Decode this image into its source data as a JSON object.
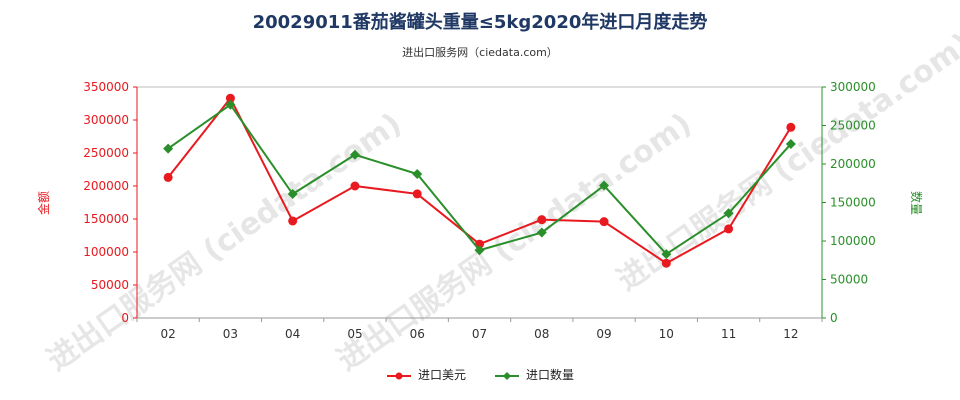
{
  "chart_data": {
    "type": "line",
    "title": "20029011番茄酱罐头重量≤5kg2020年进口月度走势",
    "subtitle": "进出口服务网（ciedata.com）",
    "watermark": "进出口服务网 (ciedata.com)",
    "categories": [
      "02",
      "03",
      "04",
      "05",
      "06",
      "07",
      "08",
      "09",
      "10",
      "11",
      "12"
    ],
    "ylabel_left": "金额",
    "ylabel_right": "数量",
    "ylim_left": [
      0,
      350000
    ],
    "ylim_right": [
      0,
      300000
    ],
    "yticks_left": [
      "0",
      "50000",
      "100000",
      "150000",
      "200000",
      "250000",
      "300000",
      "350000"
    ],
    "yticks_right": [
      "0",
      "50000",
      "100000",
      "150000",
      "200000",
      "250000",
      "300000"
    ],
    "series": [
      {
        "name": "进口美元",
        "axis": "left",
        "color": "#e8191f",
        "values": [
          213000,
          333000,
          147000,
          200000,
          188000,
          112000,
          149000,
          146000,
          83000,
          135000,
          289000
        ]
      },
      {
        "name": "进口数量",
        "axis": "right",
        "color": "#2a8f2a",
        "values": [
          220000,
          277000,
          161000,
          212000,
          187000,
          88000,
          111000,
          172000,
          83000,
          136000,
          226000
        ]
      }
    ],
    "legend_position": "bottom-center",
    "grid": false
  }
}
